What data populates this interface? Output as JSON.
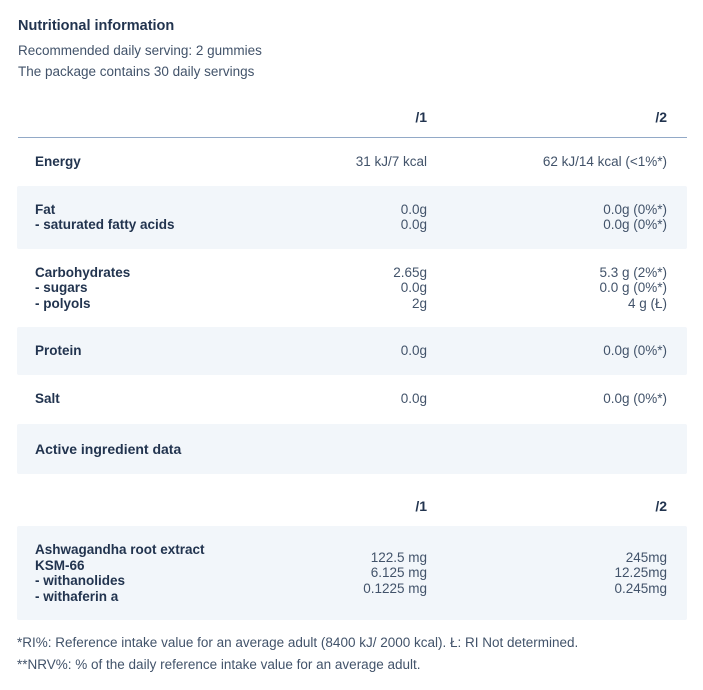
{
  "header": {
    "title": "Nutritional information",
    "serving_note": "Recommended daily serving: 2 gummies",
    "package_note": "The package contains 30 daily servings"
  },
  "columns": {
    "per1": "/1",
    "per2": "/2"
  },
  "nutrition_rows": [
    {
      "shaded": false,
      "labels": [
        "Energy"
      ],
      "per1": [
        "31 kJ/7 kcal"
      ],
      "per2": [
        "62 kJ/14 kcal (<1%*)"
      ]
    },
    {
      "shaded": true,
      "labels": [
        "Fat",
        "- saturated fatty acids"
      ],
      "per1": [
        "0.0g",
        "0.0g"
      ],
      "per2": [
        "0.0g (0%*)",
        "0.0g (0%*)"
      ]
    },
    {
      "shaded": false,
      "labels": [
        "Carbohydrates",
        "- sugars",
        "- polyols"
      ],
      "per1": [
        "2.65g",
        "0.0g",
        "2g"
      ],
      "per2": [
        "5.3 g (2%*)",
        "0.0 g (0%*)",
        "4 g (Ł)"
      ]
    },
    {
      "shaded": true,
      "labels": [
        "Protein"
      ],
      "per1": [
        "0.0g"
      ],
      "per2": [
        "0.0g (0%*)"
      ]
    },
    {
      "shaded": false,
      "labels": [
        "Salt"
      ],
      "per1": [
        "0.0g"
      ],
      "per2": [
        "0.0g (0%*)"
      ]
    }
  ],
  "section_header": "Active ingredient data",
  "active_ingredient_rows": [
    {
      "shaded": true,
      "labels": [
        "Ashwagandha root extract",
        "KSM-66",
        "- withanolides",
        "- withaferin a"
      ],
      "per1": [
        "122.5 mg",
        "6.125 mg",
        "0.1225 mg"
      ],
      "per2": [
        "245mg",
        "12.25mg",
        "0.245mg"
      ]
    }
  ],
  "footnotes": [
    "*RI%: Reference intake value for an average adult (8400 kJ/ 2000 kcal). Ł: RI Not determined.",
    "**NRV%: % of the daily reference intake value for an average adult."
  ],
  "colors": {
    "body_text": "#42536a",
    "heading_text": "#22344f",
    "row_shade": "#f2f6fa",
    "divider": "#92a9c7"
  }
}
